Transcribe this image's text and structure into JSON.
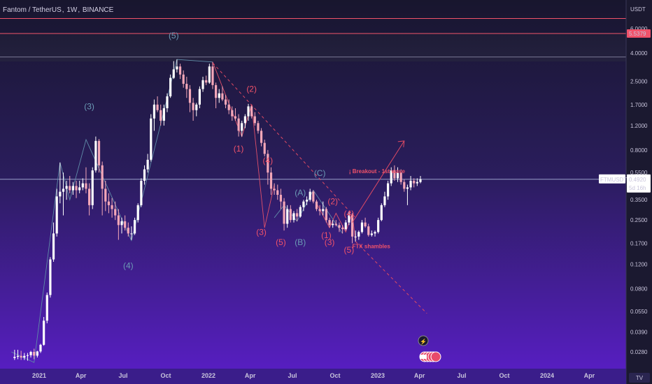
{
  "header": {
    "symbol_name": "Fantom / TetherUS",
    "interval": "1W",
    "exchange": "BINANCE"
  },
  "price_axis": {
    "currency": "USDT",
    "ticks": [
      "6.0000",
      "4.0000",
      "2.5000",
      "1.7000",
      "1.2000",
      "0.8000",
      "0.5500",
      "0.3500",
      "0.2500",
      "0.1700",
      "0.1200",
      "0.0800",
      "0.0550",
      "0.0390",
      "0.0280"
    ],
    "current_price_label": "0.4920",
    "countdown": "5d 16h",
    "ticker_tag": "FTMUSDT",
    "level_label": "5.5379"
  },
  "time_axis": {
    "labels": [
      "2021",
      "Apr",
      "Jul",
      "Oct",
      "2022",
      "Apr",
      "Jul",
      "Oct",
      "2023",
      "Apr",
      "Jul",
      "Oct",
      "2024",
      "Apr"
    ],
    "tv_logo": "TV"
  },
  "annotations": {
    "blue_waves": [
      {
        "text": "(5)"
      },
      {
        "text": "(3)"
      },
      {
        "text": "(4)"
      },
      {
        "text": "(A)"
      },
      {
        "text": "(C)"
      },
      {
        "text": "(B)"
      }
    ],
    "red_waves": [
      {
        "text": "(2)"
      },
      {
        "text": "(1)"
      },
      {
        "text": "(4)"
      },
      {
        "text": "(3)"
      },
      {
        "text": "(5)"
      },
      {
        "text": "(2)"
      },
      {
        "text": "(4)"
      },
      {
        "text": "(1)"
      },
      {
        "text": "(3)"
      },
      {
        "text": "(5)"
      }
    ],
    "notes": {
      "breakout": "¡ Breakout - 1st wave",
      "ftx": "FTX shambles"
    }
  },
  "colors": {
    "background_top": "#1a1733",
    "background_bottom": "#5a1ec8",
    "bull_candle": "#ffffff",
    "bear_candle": "#f3a7b8",
    "red_annotation": "#f0526a",
    "blue_annotation": "#6b9ab5",
    "wave_line": "#5f8ba8",
    "horizontal_line": "#f0526a",
    "price_tag": "#ffffff"
  },
  "chart_data": {
    "type": "candlestick",
    "title": "Fantom / TetherUS, 1W, BINANCE",
    "ylabel": "USDT",
    "y_scale": "log",
    "ylim": [
      0.025,
      7.5
    ],
    "current_price": 0.492,
    "resistance_levels": [
      5.5379,
      7.1,
      3.75
    ],
    "x_range": [
      "2020-11-02",
      "2024-06-10"
    ],
    "candles": [
      {
        "t": "2020-11-09",
        "o": 0.0253,
        "h": 0.029,
        "l": 0.0245,
        "c": 0.0258
      },
      {
        "t": "2020-11-16",
        "o": 0.0258,
        "h": 0.029,
        "l": 0.0248,
        "c": 0.0262
      },
      {
        "t": "2020-11-23",
        "o": 0.0262,
        "h": 0.0285,
        "l": 0.0245,
        "c": 0.0255
      },
      {
        "t": "2020-11-30",
        "o": 0.0255,
        "h": 0.0275,
        "l": 0.0245,
        "c": 0.0262
      },
      {
        "t": "2020-12-07",
        "o": 0.0262,
        "h": 0.0275,
        "l": 0.0242,
        "c": 0.0265
      },
      {
        "t": "2020-12-14",
        "o": 0.0265,
        "h": 0.0285,
        "l": 0.0255,
        "c": 0.028
      },
      {
        "t": "2020-12-21",
        "o": 0.028,
        "h": 0.0295,
        "l": 0.0248,
        "c": 0.0263
      },
      {
        "t": "2020-12-28",
        "o": 0.0263,
        "h": 0.0285,
        "l": 0.0255,
        "c": 0.0282
      },
      {
        "t": "2021-01-04",
        "o": 0.0282,
        "h": 0.032,
        "l": 0.0275,
        "c": 0.0315
      },
      {
        "t": "2021-01-11",
        "o": 0.0315,
        "h": 0.05,
        "l": 0.031,
        "c": 0.047
      },
      {
        "t": "2021-01-18",
        "o": 0.047,
        "h": 0.075,
        "l": 0.045,
        "c": 0.072
      },
      {
        "t": "2021-01-25",
        "o": 0.072,
        "h": 0.135,
        "l": 0.069,
        "c": 0.13
      },
      {
        "t": "2021-02-01",
        "o": 0.13,
        "h": 0.24,
        "l": 0.125,
        "c": 0.2
      },
      {
        "t": "2021-02-08",
        "o": 0.2,
        "h": 0.42,
        "l": 0.19,
        "c": 0.37
      },
      {
        "t": "2021-02-15",
        "o": 0.37,
        "h": 0.65,
        "l": 0.33,
        "c": 0.4
      },
      {
        "t": "2021-02-22",
        "o": 0.4,
        "h": 0.55,
        "l": 0.27,
        "c": 0.42
      },
      {
        "t": "2021-03-01",
        "o": 0.42,
        "h": 0.48,
        "l": 0.35,
        "c": 0.44
      },
      {
        "t": "2021-03-08",
        "o": 0.44,
        "h": 0.52,
        "l": 0.39,
        "c": 0.41
      },
      {
        "t": "2021-03-15",
        "o": 0.41,
        "h": 0.47,
        "l": 0.38,
        "c": 0.44
      },
      {
        "t": "2021-03-22",
        "o": 0.44,
        "h": 0.48,
        "l": 0.36,
        "c": 0.41
      },
      {
        "t": "2021-03-29",
        "o": 0.41,
        "h": 0.48,
        "l": 0.39,
        "c": 0.43
      },
      {
        "t": "2021-04-05",
        "o": 0.43,
        "h": 0.5,
        "l": 0.41,
        "c": 0.46
      },
      {
        "t": "2021-04-12",
        "o": 0.46,
        "h": 0.6,
        "l": 0.39,
        "c": 0.42
      },
      {
        "t": "2021-04-19",
        "o": 0.42,
        "h": 0.46,
        "l": 0.27,
        "c": 0.32
      },
      {
        "t": "2021-04-26",
        "o": 0.32,
        "h": 0.6,
        "l": 0.3,
        "c": 0.57
      },
      {
        "t": "2021-05-03",
        "o": 0.57,
        "h": 1.0,
        "l": 0.55,
        "c": 0.93
      },
      {
        "t": "2021-05-10",
        "o": 0.93,
        "h": 0.96,
        "l": 0.55,
        "c": 0.62
      },
      {
        "t": "2021-05-17",
        "o": 0.62,
        "h": 0.66,
        "l": 0.27,
        "c": 0.42
      },
      {
        "t": "2021-05-24",
        "o": 0.42,
        "h": 0.48,
        "l": 0.29,
        "c": 0.34
      },
      {
        "t": "2021-05-31",
        "o": 0.34,
        "h": 0.39,
        "l": 0.28,
        "c": 0.32
      },
      {
        "t": "2021-06-07",
        "o": 0.32,
        "h": 0.36,
        "l": 0.26,
        "c": 0.3
      },
      {
        "t": "2021-06-14",
        "o": 0.3,
        "h": 0.34,
        "l": 0.25,
        "c": 0.27
      },
      {
        "t": "2021-06-21",
        "o": 0.27,
        "h": 0.3,
        "l": 0.18,
        "c": 0.23
      },
      {
        "t": "2021-06-28",
        "o": 0.23,
        "h": 0.26,
        "l": 0.2,
        "c": 0.245
      },
      {
        "t": "2021-07-05",
        "o": 0.245,
        "h": 0.27,
        "l": 0.21,
        "c": 0.22
      },
      {
        "t": "2021-07-12",
        "o": 0.22,
        "h": 0.24,
        "l": 0.19,
        "c": 0.2
      },
      {
        "t": "2021-07-19",
        "o": 0.2,
        "h": 0.225,
        "l": 0.18,
        "c": 0.2
      },
      {
        "t": "2021-07-26",
        "o": 0.2,
        "h": 0.26,
        "l": 0.195,
        "c": 0.25
      },
      {
        "t": "2021-08-02",
        "o": 0.25,
        "h": 0.33,
        "l": 0.24,
        "c": 0.32
      },
      {
        "t": "2021-08-09",
        "o": 0.32,
        "h": 0.5,
        "l": 0.31,
        "c": 0.48
      },
      {
        "t": "2021-08-16",
        "o": 0.48,
        "h": 0.62,
        "l": 0.45,
        "c": 0.58
      },
      {
        "t": "2021-08-23",
        "o": 0.58,
        "h": 0.75,
        "l": 0.55,
        "c": 0.68
      },
      {
        "t": "2021-08-30",
        "o": 0.68,
        "h": 1.45,
        "l": 0.66,
        "c": 1.35
      },
      {
        "t": "2021-09-06",
        "o": 1.35,
        "h": 1.85,
        "l": 1.1,
        "c": 1.7
      },
      {
        "t": "2021-09-13",
        "o": 1.7,
        "h": 1.95,
        "l": 1.5,
        "c": 1.55
      },
      {
        "t": "2021-09-20",
        "o": 1.55,
        "h": 1.7,
        "l": 1.2,
        "c": 1.3
      },
      {
        "t": "2021-09-27",
        "o": 1.3,
        "h": 1.7,
        "l": 1.2,
        "c": 1.6
      },
      {
        "t": "2021-10-04",
        "o": 1.6,
        "h": 2.05,
        "l": 1.5,
        "c": 1.95
      },
      {
        "t": "2021-10-11",
        "o": 1.95,
        "h": 2.8,
        "l": 1.9,
        "c": 2.65
      },
      {
        "t": "2021-10-18",
        "o": 2.65,
        "h": 3.5,
        "l": 2.6,
        "c": 3.05
      },
      {
        "t": "2021-10-25",
        "o": 3.05,
        "h": 3.6,
        "l": 2.9,
        "c": 3.2
      },
      {
        "t": "2021-11-01",
        "o": 3.2,
        "h": 3.35,
        "l": 2.6,
        "c": 2.8
      },
      {
        "t": "2021-11-08",
        "o": 2.8,
        "h": 3.0,
        "l": 2.25,
        "c": 2.4
      },
      {
        "t": "2021-11-15",
        "o": 2.4,
        "h": 2.7,
        "l": 1.9,
        "c": 2.2
      },
      {
        "t": "2021-11-22",
        "o": 2.2,
        "h": 2.35,
        "l": 1.5,
        "c": 1.75
      },
      {
        "t": "2021-11-29",
        "o": 1.75,
        "h": 1.9,
        "l": 1.3,
        "c": 1.55
      },
      {
        "t": "2021-12-06",
        "o": 1.55,
        "h": 1.75,
        "l": 1.4,
        "c": 1.7
      },
      {
        "t": "2021-12-13",
        "o": 1.7,
        "h": 2.3,
        "l": 1.6,
        "c": 2.2
      },
      {
        "t": "2021-12-20",
        "o": 2.2,
        "h": 2.7,
        "l": 2.1,
        "c": 2.55
      },
      {
        "t": "2021-12-27",
        "o": 2.55,
        "h": 2.75,
        "l": 2.35,
        "c": 2.45
      },
      {
        "t": "2022-01-03",
        "o": 2.45,
        "h": 3.35,
        "l": 2.4,
        "c": 3.2
      },
      {
        "t": "2022-01-10",
        "o": 3.2,
        "h": 3.45,
        "l": 2.2,
        "c": 2.35
      },
      {
        "t": "2022-01-17",
        "o": 2.35,
        "h": 2.45,
        "l": 1.6,
        "c": 1.9
      },
      {
        "t": "2022-01-24",
        "o": 1.9,
        "h": 2.2,
        "l": 1.75,
        "c": 2.05
      },
      {
        "t": "2022-01-31",
        "o": 2.05,
        "h": 2.3,
        "l": 1.8,
        "c": 1.85
      },
      {
        "t": "2022-02-07",
        "o": 1.85,
        "h": 2.0,
        "l": 1.6,
        "c": 1.7
      },
      {
        "t": "2022-02-14",
        "o": 1.7,
        "h": 1.85,
        "l": 1.45,
        "c": 1.55
      },
      {
        "t": "2022-02-21",
        "o": 1.55,
        "h": 1.65,
        "l": 1.3,
        "c": 1.4
      },
      {
        "t": "2022-02-28",
        "o": 1.4,
        "h": 1.6,
        "l": 1.3,
        "c": 1.35
      },
      {
        "t": "2022-03-07",
        "o": 1.35,
        "h": 1.45,
        "l": 1.0,
        "c": 1.1
      },
      {
        "t": "2022-03-14",
        "o": 1.1,
        "h": 1.3,
        "l": 1.0,
        "c": 1.25
      },
      {
        "t": "2022-03-21",
        "o": 1.25,
        "h": 1.45,
        "l": 1.15,
        "c": 1.4
      },
      {
        "t": "2022-03-28",
        "o": 1.4,
        "h": 1.72,
        "l": 1.3,
        "c": 1.65
      },
      {
        "t": "2022-04-04",
        "o": 1.65,
        "h": 1.7,
        "l": 1.35,
        "c": 1.4
      },
      {
        "t": "2022-04-11",
        "o": 1.4,
        "h": 1.5,
        "l": 1.2,
        "c": 1.25
      },
      {
        "t": "2022-04-18",
        "o": 1.25,
        "h": 1.3,
        "l": 1.05,
        "c": 1.1
      },
      {
        "t": "2022-04-25",
        "o": 1.1,
        "h": 1.15,
        "l": 0.85,
        "c": 0.9
      },
      {
        "t": "2022-05-02",
        "o": 0.9,
        "h": 0.95,
        "l": 0.72,
        "c": 0.75
      },
      {
        "t": "2022-05-09",
        "o": 0.75,
        "h": 0.8,
        "l": 0.45,
        "c": 0.55
      },
      {
        "t": "2022-05-16",
        "o": 0.55,
        "h": 0.6,
        "l": 0.38,
        "c": 0.42
      },
      {
        "t": "2022-05-23",
        "o": 0.42,
        "h": 0.46,
        "l": 0.38,
        "c": 0.41
      },
      {
        "t": "2022-05-30",
        "o": 0.41,
        "h": 0.45,
        "l": 0.35,
        "c": 0.38
      },
      {
        "t": "2022-06-06",
        "o": 0.38,
        "h": 0.42,
        "l": 0.3,
        "c": 0.34
      },
      {
        "t": "2022-06-13",
        "o": 0.34,
        "h": 0.36,
        "l": 0.21,
        "c": 0.235
      },
      {
        "t": "2022-06-20",
        "o": 0.235,
        "h": 0.32,
        "l": 0.22,
        "c": 0.3
      },
      {
        "t": "2022-06-27",
        "o": 0.3,
        "h": 0.32,
        "l": 0.24,
        "c": 0.25
      },
      {
        "t": "2022-07-04",
        "o": 0.25,
        "h": 0.29,
        "l": 0.24,
        "c": 0.28
      },
      {
        "t": "2022-07-11",
        "o": 0.28,
        "h": 0.3,
        "l": 0.245,
        "c": 0.265
      },
      {
        "t": "2022-07-18",
        "o": 0.265,
        "h": 0.32,
        "l": 0.26,
        "c": 0.31
      },
      {
        "t": "2022-07-25",
        "o": 0.31,
        "h": 0.35,
        "l": 0.29,
        "c": 0.34
      },
      {
        "t": "2022-08-01",
        "o": 0.34,
        "h": 0.37,
        "l": 0.32,
        "c": 0.35
      },
      {
        "t": "2022-08-08",
        "o": 0.35,
        "h": 0.42,
        "l": 0.34,
        "c": 0.4
      },
      {
        "t": "2022-08-15",
        "o": 0.4,
        "h": 0.41,
        "l": 0.33,
        "c": 0.34
      },
      {
        "t": "2022-08-22",
        "o": 0.34,
        "h": 0.35,
        "l": 0.29,
        "c": 0.3
      },
      {
        "t": "2022-08-29",
        "o": 0.3,
        "h": 0.32,
        "l": 0.27,
        "c": 0.29
      },
      {
        "t": "2022-09-05",
        "o": 0.29,
        "h": 0.34,
        "l": 0.27,
        "c": 0.3
      },
      {
        "t": "2022-09-12",
        "o": 0.3,
        "h": 0.31,
        "l": 0.24,
        "c": 0.25
      },
      {
        "t": "2022-09-19",
        "o": 0.25,
        "h": 0.26,
        "l": 0.22,
        "c": 0.23
      },
      {
        "t": "2022-09-26",
        "o": 0.23,
        "h": 0.25,
        "l": 0.22,
        "c": 0.235
      },
      {
        "t": "2022-10-03",
        "o": 0.235,
        "h": 0.25,
        "l": 0.225,
        "c": 0.23
      },
      {
        "t": "2022-10-10",
        "o": 0.23,
        "h": 0.24,
        "l": 0.205,
        "c": 0.22
      },
      {
        "t": "2022-10-17",
        "o": 0.22,
        "h": 0.23,
        "l": 0.2,
        "c": 0.215
      },
      {
        "t": "2022-10-24",
        "o": 0.215,
        "h": 0.25,
        "l": 0.21,
        "c": 0.24
      },
      {
        "t": "2022-10-31",
        "o": 0.24,
        "h": 0.29,
        "l": 0.23,
        "c": 0.27
      },
      {
        "t": "2022-11-07",
        "o": 0.27,
        "h": 0.28,
        "l": 0.17,
        "c": 0.19
      },
      {
        "t": "2022-11-14",
        "o": 0.19,
        "h": 0.21,
        "l": 0.175,
        "c": 0.19
      },
      {
        "t": "2022-11-21",
        "o": 0.19,
        "h": 0.21,
        "l": 0.18,
        "c": 0.205
      },
      {
        "t": "2022-11-28",
        "o": 0.205,
        "h": 0.25,
        "l": 0.2,
        "c": 0.24
      },
      {
        "t": "2022-12-05",
        "o": 0.24,
        "h": 0.26,
        "l": 0.22,
        "c": 0.225
      },
      {
        "t": "2022-12-12",
        "o": 0.225,
        "h": 0.235,
        "l": 0.19,
        "c": 0.195
      },
      {
        "t": "2022-12-19",
        "o": 0.195,
        "h": 0.21,
        "l": 0.19,
        "c": 0.2
      },
      {
        "t": "2022-12-26",
        "o": 0.2,
        "h": 0.21,
        "l": 0.19,
        "c": 0.205
      },
      {
        "t": "2023-01-02",
        "o": 0.205,
        "h": 0.26,
        "l": 0.2,
        "c": 0.25
      },
      {
        "t": "2023-01-09",
        "o": 0.25,
        "h": 0.33,
        "l": 0.245,
        "c": 0.32
      },
      {
        "t": "2023-01-16",
        "o": 0.32,
        "h": 0.4,
        "l": 0.31,
        "c": 0.37
      },
      {
        "t": "2023-01-23",
        "o": 0.37,
        "h": 0.48,
        "l": 0.35,
        "c": 0.46
      },
      {
        "t": "2023-01-30",
        "o": 0.46,
        "h": 0.6,
        "l": 0.44,
        "c": 0.57
      },
      {
        "t": "2023-02-06",
        "o": 0.57,
        "h": 0.62,
        "l": 0.48,
        "c": 0.5
      },
      {
        "t": "2023-02-13",
        "o": 0.5,
        "h": 0.6,
        "l": 0.47,
        "c": 0.55
      },
      {
        "t": "2023-02-20",
        "o": 0.55,
        "h": 0.58,
        "l": 0.45,
        "c": 0.47
      },
      {
        "t": "2023-02-27",
        "o": 0.47,
        "h": 0.49,
        "l": 0.4,
        "c": 0.42
      },
      {
        "t": "2023-03-06",
        "o": 0.42,
        "h": 0.45,
        "l": 0.32,
        "c": 0.43
      },
      {
        "t": "2023-03-13",
        "o": 0.43,
        "h": 0.52,
        "l": 0.41,
        "c": 0.48
      },
      {
        "t": "2023-03-20",
        "o": 0.48,
        "h": 0.5,
        "l": 0.43,
        "c": 0.46
      },
      {
        "t": "2023-03-27",
        "o": 0.46,
        "h": 0.5,
        "l": 0.44,
        "c": 0.47
      },
      {
        "t": "2023-04-03",
        "o": 0.47,
        "h": 0.52,
        "l": 0.46,
        "c": 0.492
      }
    ]
  }
}
